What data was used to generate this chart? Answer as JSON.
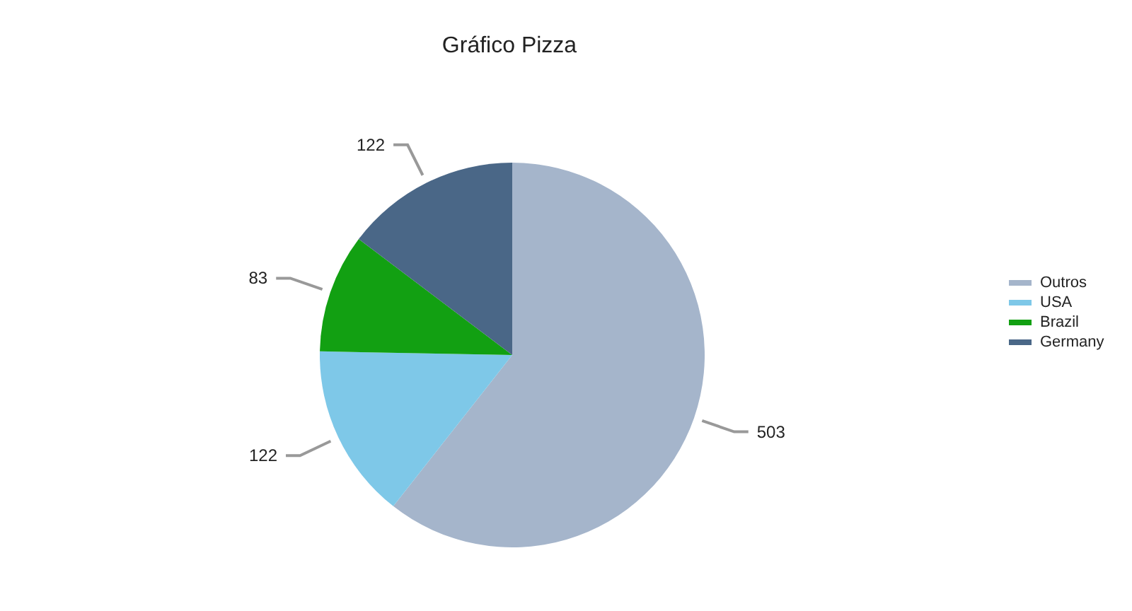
{
  "chart_data": {
    "type": "pie",
    "title": "Gráfico Pizza",
    "categories": [
      "Outros",
      "USA",
      "Brazil",
      "Germany"
    ],
    "values": [
      503,
      122,
      83,
      122
    ],
    "colors": [
      "#a5b5cb",
      "#7ec8e8",
      "#12a012",
      "#4a6787"
    ],
    "data_labels": true,
    "legend": "right"
  }
}
